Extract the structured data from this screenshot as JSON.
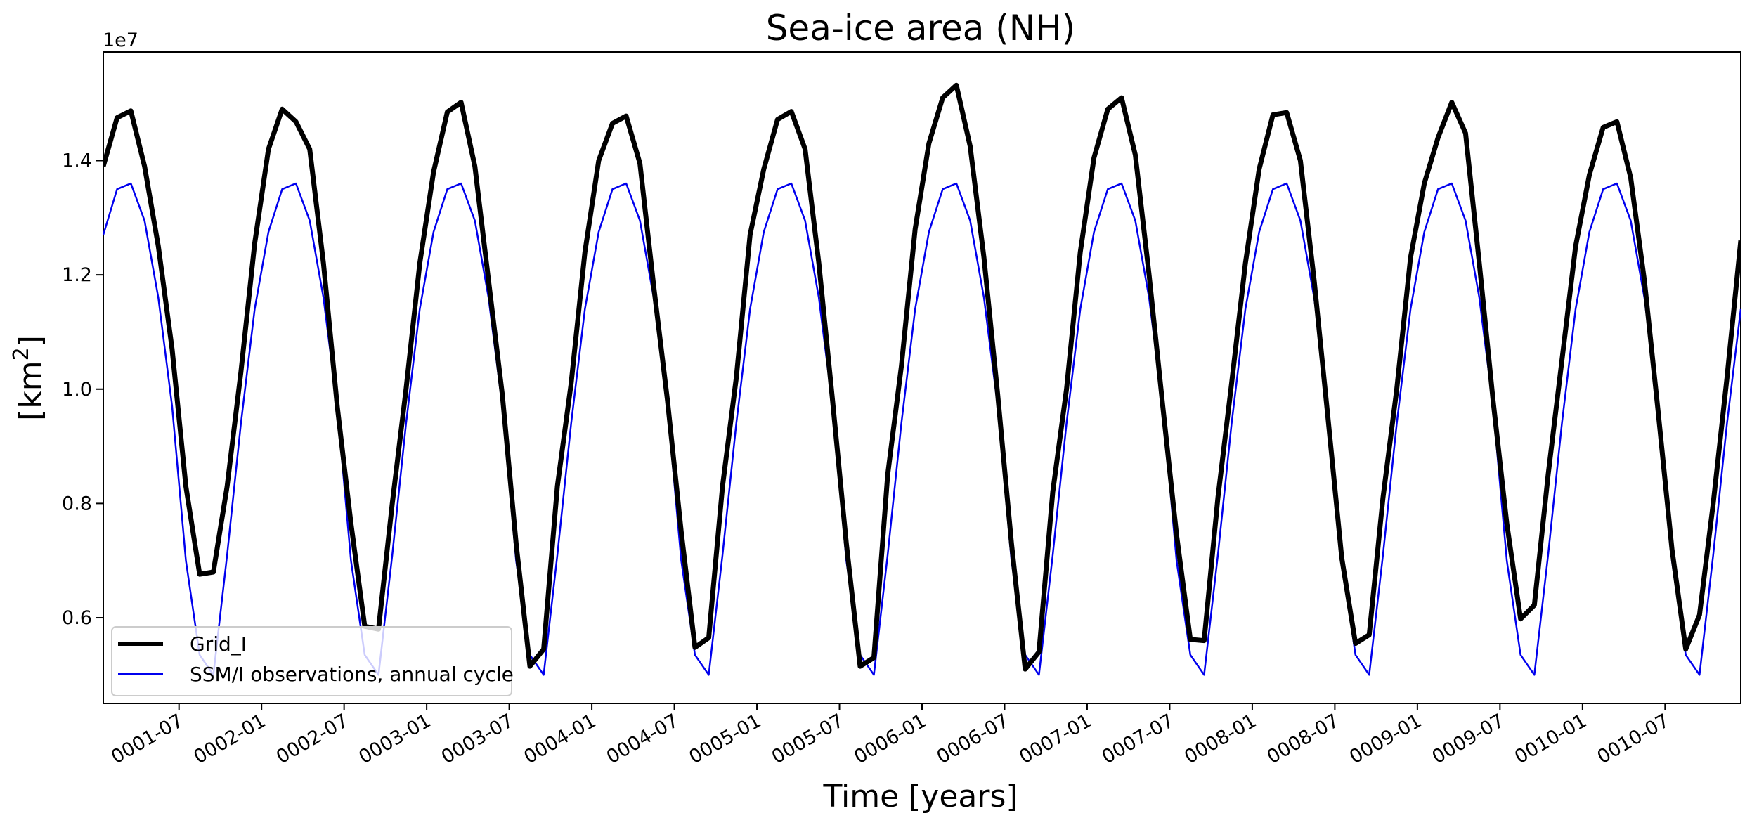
{
  "chart_data": {
    "type": "line",
    "title": "Sea-ice area (NH)",
    "xlabel": "Time [years]",
    "ylabel_base": "[km",
    "ylabel_sup": "2",
    "ylabel_end": "]",
    "y_offset_label": "1e7",
    "ylim": [
      0.45,
      1.59
    ],
    "xlim": [
      0,
      119
    ],
    "y_ticks": [
      0.6,
      0.8,
      1.0,
      1.2,
      1.4
    ],
    "y_tick_labels": [
      "0.6",
      "0.8",
      "1.0",
      "1.2",
      "1.4"
    ],
    "x_ticks": [
      5.5,
      11.5,
      17.5,
      23.5,
      29.5,
      35.5,
      41.5,
      47.5,
      53.5,
      59.5,
      65.5,
      71.5,
      77.5,
      83.5,
      89.5,
      95.5,
      101.5,
      107.5,
      113.5
    ],
    "x_tick_labels": [
      "0001-07",
      "0002-01",
      "0002-07",
      "0003-01",
      "0003-07",
      "0004-01",
      "0004-07",
      "0005-01",
      "0005-07",
      "0006-01",
      "0006-07",
      "0007-01",
      "0007-07",
      "0008-01",
      "0008-07",
      "0009-01",
      "0009-07",
      "0010-01",
      "0010-07"
    ],
    "legend_position": "lower-left",
    "series": [
      {
        "name": "Grid_I",
        "color": "#000000",
        "style": "thick",
        "x": [
          0,
          1,
          2,
          3,
          4,
          5,
          6,
          7,
          8,
          9,
          10,
          11,
          12,
          13,
          14,
          15,
          16,
          17,
          18,
          19,
          20,
          21,
          22,
          23,
          24,
          25,
          26,
          27,
          28,
          29,
          30,
          31,
          32,
          33,
          34,
          35,
          36,
          37,
          38,
          39,
          40,
          41,
          42,
          43,
          44,
          45,
          46,
          47,
          48,
          49,
          50,
          51,
          52,
          53,
          54,
          55,
          56,
          57,
          58,
          59,
          60,
          61,
          62,
          63,
          64,
          65,
          66,
          67,
          68,
          69,
          70,
          71,
          72,
          73,
          74,
          75,
          76,
          77,
          78,
          79,
          80,
          81,
          82,
          83,
          84,
          85,
          86,
          87,
          88,
          89,
          90,
          91,
          92,
          93,
          94,
          95,
          96,
          97,
          98,
          99,
          100,
          101,
          102,
          103,
          104,
          105,
          106,
          107,
          108,
          109,
          110,
          111,
          112,
          113,
          114,
          115,
          116,
          117,
          118,
          119
        ],
        "values": [
          1.39,
          1.475,
          1.487,
          1.39,
          1.25,
          1.07,
          0.83,
          0.676,
          0.68,
          0.83,
          1.03,
          1.255,
          1.42,
          1.49,
          1.468,
          1.42,
          1.22,
          0.97,
          0.765,
          0.585,
          0.58,
          0.8,
          1.0,
          1.22,
          1.38,
          1.485,
          1.502,
          1.39,
          1.19,
          0.99,
          0.73,
          0.515,
          0.545,
          0.83,
          1.01,
          1.24,
          1.4,
          1.465,
          1.478,
          1.395,
          1.18,
          0.98,
          0.75,
          0.548,
          0.565,
          0.83,
          1.02,
          1.27,
          1.385,
          1.472,
          1.486,
          1.42,
          1.22,
          0.98,
          0.73,
          0.515,
          0.53,
          0.85,
          1.04,
          1.28,
          1.43,
          1.51,
          1.532,
          1.425,
          1.23,
          0.99,
          0.73,
          0.51,
          0.54,
          0.82,
          1.0,
          1.24,
          1.405,
          1.49,
          1.51,
          1.41,
          1.2,
          0.97,
          0.745,
          0.562,
          0.56,
          0.81,
          1.01,
          1.22,
          1.385,
          1.48,
          1.484,
          1.4,
          1.19,
          0.95,
          0.705,
          0.555,
          0.57,
          0.81,
          1.0,
          1.23,
          1.36,
          1.44,
          1.502,
          1.448,
          1.22,
          0.98,
          0.765,
          0.598,
          0.622,
          0.85,
          1.05,
          1.25,
          1.375,
          1.458,
          1.468,
          1.37,
          1.19,
          0.96,
          0.72,
          0.545,
          0.605,
          0.8,
          1.02,
          1.26
        ]
      },
      {
        "name": "SSM/I observations, annual cycle",
        "color": "#0000ee",
        "style": "thin",
        "x": [
          0,
          1,
          2,
          3,
          4,
          5,
          6,
          7,
          8,
          9,
          10,
          11,
          12,
          13,
          14,
          15,
          16,
          17,
          18,
          19,
          20,
          21,
          22,
          23,
          24,
          25,
          26,
          27,
          28,
          29,
          30,
          31,
          32,
          33,
          34,
          35,
          36,
          37,
          38,
          39,
          40,
          41,
          42,
          43,
          44,
          45,
          46,
          47,
          48,
          49,
          50,
          51,
          52,
          53,
          54,
          55,
          56,
          57,
          58,
          59,
          60,
          61,
          62,
          63,
          64,
          65,
          66,
          67,
          68,
          69,
          70,
          71,
          72,
          73,
          74,
          75,
          76,
          77,
          78,
          79,
          80,
          81,
          82,
          83,
          84,
          85,
          86,
          87,
          88,
          89,
          90,
          91,
          92,
          93,
          94,
          95,
          96,
          97,
          98,
          99,
          100,
          101,
          102,
          103,
          104,
          105,
          106,
          107,
          108,
          109,
          110,
          111,
          112,
          113,
          114,
          115,
          116,
          117,
          118,
          119
        ],
        "values": [
          1.27,
          1.35,
          1.36,
          1.295,
          1.16,
          0.97,
          0.7,
          0.535,
          0.5,
          0.71,
          0.94,
          1.14,
          1.275,
          1.35,
          1.36,
          1.295,
          1.16,
          0.97,
          0.7,
          0.535,
          0.5,
          0.71,
          0.94,
          1.14,
          1.275,
          1.35,
          1.36,
          1.295,
          1.16,
          0.97,
          0.7,
          0.535,
          0.5,
          0.71,
          0.94,
          1.14,
          1.275,
          1.35,
          1.36,
          1.295,
          1.16,
          0.97,
          0.7,
          0.535,
          0.5,
          0.71,
          0.94,
          1.14,
          1.275,
          1.35,
          1.36,
          1.295,
          1.16,
          0.97,
          0.7,
          0.535,
          0.5,
          0.71,
          0.94,
          1.14,
          1.275,
          1.35,
          1.36,
          1.295,
          1.16,
          0.97,
          0.7,
          0.535,
          0.5,
          0.71,
          0.94,
          1.14,
          1.275,
          1.35,
          1.36,
          1.295,
          1.16,
          0.97,
          0.7,
          0.535,
          0.5,
          0.71,
          0.94,
          1.14,
          1.275,
          1.35,
          1.36,
          1.295,
          1.16,
          0.97,
          0.7,
          0.535,
          0.5,
          0.71,
          0.94,
          1.14,
          1.275,
          1.35,
          1.36,
          1.295,
          1.16,
          0.97,
          0.7,
          0.535,
          0.5,
          0.71,
          0.94,
          1.14,
          1.275,
          1.35,
          1.36,
          1.295,
          1.16,
          0.97,
          0.7,
          0.535,
          0.5,
          0.71,
          0.94,
          1.14
        ]
      }
    ]
  }
}
